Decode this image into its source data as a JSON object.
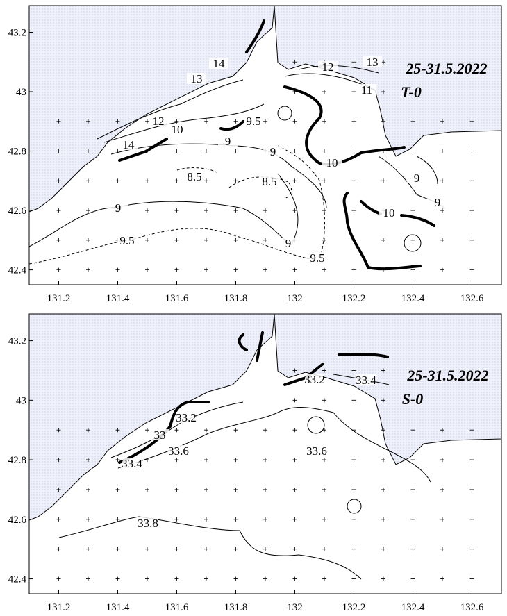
{
  "panels": [
    {
      "title_date": "25-31.5.2022",
      "title_var": "T-0",
      "xlim": [
        131.1,
        132.7
      ],
      "ylim": [
        42.35,
        43.29
      ],
      "xticks": [
        131.2,
        131.4,
        131.6,
        131.8,
        132,
        132.2,
        132.4,
        132.6
      ],
      "yticks": [
        42.4,
        42.6,
        42.8,
        43,
        43.2
      ],
      "contour_labels": [
        14,
        13,
        12,
        13,
        11,
        12,
        10,
        14,
        9.5,
        9,
        9,
        8.5,
        8.5,
        9,
        9,
        9,
        10,
        10,
        9.5,
        9,
        9.5
      ]
    },
    {
      "title_date": "25-31.5.2022",
      "title_var": "S-0",
      "xlim": [
        131.1,
        132.7
      ],
      "ylim": [
        42.35,
        43.29
      ],
      "xticks": [
        131.2,
        131.4,
        131.6,
        131.8,
        132,
        132.2,
        132.4,
        132.6
      ],
      "yticks": [
        42.4,
        42.6,
        42.8,
        43,
        43.2
      ],
      "contour_labels": [
        33.2,
        33.4,
        33.2,
        33,
        33.6,
        33.4,
        33.6,
        33.8
      ]
    }
  ]
}
